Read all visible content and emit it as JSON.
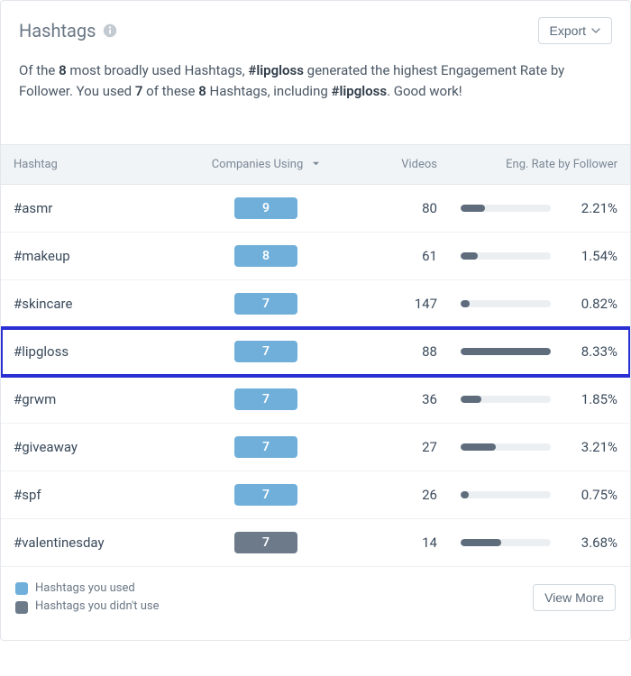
{
  "header": {
    "title": "Hashtags",
    "export_label": "Export"
  },
  "summary": {
    "prefix": "Of the ",
    "count1": "8",
    "mid1": " most broadly used Hashtags, ",
    "top_tag": "#lipgloss",
    "mid2": " generated the highest Engagement Rate by Follower. You used ",
    "count2": "7",
    "mid3": " of these ",
    "count3": "8",
    "mid4": " Hashtags, including ",
    "top_tag2": "#lipgloss",
    "suffix": ". Good work!"
  },
  "columns": {
    "hashtag": "Hashtag",
    "companies": "Companies Using",
    "videos": "Videos",
    "eng": "Eng. Rate by Follower"
  },
  "rows": [
    {
      "tag": "#asmr",
      "companies": "9",
      "used": true,
      "videos": "80",
      "eng_pct": "2.21%",
      "bar_pct": 27,
      "highlight": false
    },
    {
      "tag": "#makeup",
      "companies": "8",
      "used": true,
      "videos": "61",
      "eng_pct": "1.54%",
      "bar_pct": 19,
      "highlight": false
    },
    {
      "tag": "#skincare",
      "companies": "7",
      "used": true,
      "videos": "147",
      "eng_pct": "0.82%",
      "bar_pct": 10,
      "highlight": false
    },
    {
      "tag": "#lipgloss",
      "companies": "7",
      "used": true,
      "videos": "88",
      "eng_pct": "8.33%",
      "bar_pct": 100,
      "highlight": true
    },
    {
      "tag": "#grwm",
      "companies": "7",
      "used": true,
      "videos": "36",
      "eng_pct": "1.85%",
      "bar_pct": 23,
      "highlight": false
    },
    {
      "tag": "#giveaway",
      "companies": "7",
      "used": true,
      "videos": "27",
      "eng_pct": "3.21%",
      "bar_pct": 39,
      "highlight": false
    },
    {
      "tag": "#spf",
      "companies": "7",
      "used": true,
      "videos": "26",
      "eng_pct": "0.75%",
      "bar_pct": 9,
      "highlight": false
    },
    {
      "tag": "#valentinesday",
      "companies": "7",
      "used": false,
      "videos": "14",
      "eng_pct": "3.68%",
      "bar_pct": 45,
      "highlight": false
    }
  ],
  "legend": {
    "used_label": "Hashtags you used",
    "notused_label": "Hashtags you didn't use"
  },
  "footer": {
    "view_more": "View More"
  },
  "colors": {
    "used_pill": "#6fafd9",
    "notused_pill": "#6c7a89",
    "bar_fill": "#5e6c7c",
    "bar_bg": "#eceff2",
    "highlight_border": "#2b2fd3"
  }
}
